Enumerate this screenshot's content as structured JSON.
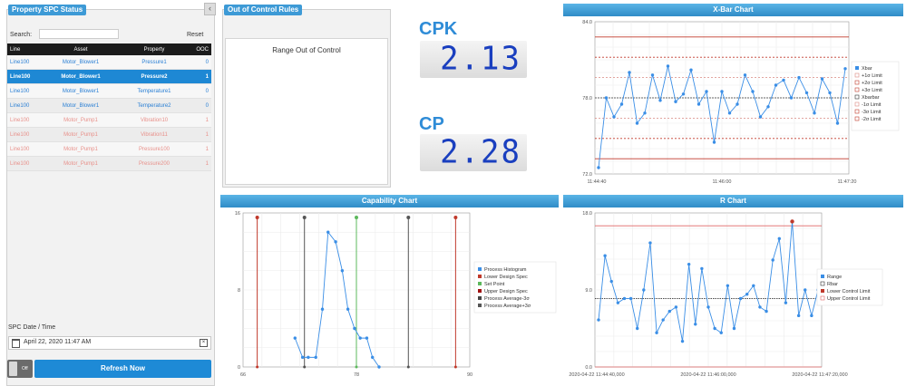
{
  "status_panel": {
    "title": "Property SPC Status",
    "search_label": "Search:",
    "search_value": "",
    "reset_label": "Reset",
    "columns": [
      "Line",
      "Asset",
      "Property",
      "OOC"
    ],
    "rows": [
      {
        "line": "Line100",
        "asset": "Motor_Blower1",
        "property": "Pressure1",
        "ooc": "0",
        "state": "normal"
      },
      {
        "line": "Line100",
        "asset": "Motor_Blower1",
        "property": "Pressure2",
        "ooc": "1",
        "state": "selected"
      },
      {
        "line": "Line100",
        "asset": "Motor_Blower1",
        "property": "Temperature1",
        "ooc": "0",
        "state": "normal"
      },
      {
        "line": "Line100",
        "asset": "Motor_Blower1",
        "property": "Temperature2",
        "ooc": "0",
        "state": "normal"
      },
      {
        "line": "Line100",
        "asset": "Motor_Pump1",
        "property": "Vibration10",
        "ooc": "1",
        "state": "alert"
      },
      {
        "line": "Line100",
        "asset": "Motor_Pump1",
        "property": "Vibration11",
        "ooc": "1",
        "state": "alert"
      },
      {
        "line": "Line100",
        "asset": "Motor_Pump1",
        "property": "Pressure100",
        "ooc": "1",
        "state": "alert"
      },
      {
        "line": "Line100",
        "asset": "Motor_Pump1",
        "property": "Pressure200",
        "ooc": "1",
        "state": "alert"
      }
    ],
    "date_label": "SPC Date / Time",
    "date_value": "April 22, 2020 11:47 AM",
    "toggle_label": "Off",
    "refresh_label": "Refresh Now"
  },
  "ooc_rules": {
    "title": "Out of Control Rules",
    "items": [
      "Range Out of Control"
    ]
  },
  "kpis": {
    "cpk_label": "CPK",
    "cpk_value": "2.13",
    "cp_label": "CP",
    "cp_value": "2.28"
  },
  "colors": {
    "accent": "#3d9ad6",
    "series": "#3a8ee6",
    "limit_red": "#c0392b",
    "center_dark": "#333333",
    "alert_row": "#e8908a",
    "selected_row": "#1e88d4"
  },
  "chart_data": [
    {
      "id": "xbar",
      "type": "line",
      "title": "X-Bar Chart",
      "xlabel": "",
      "ylabel": "",
      "x_ticks": [
        "11:44:40",
        "11:46:00",
        "11:47:20"
      ],
      "y_ticks": [
        "72.0",
        "78.0",
        "84.0"
      ],
      "ylim": [
        72,
        84
      ],
      "values": [
        72.5,
        78.0,
        76.5,
        77.5,
        80.0,
        76.0,
        76.8,
        79.8,
        77.8,
        80.5,
        77.7,
        78.3,
        80.2,
        77.5,
        78.5,
        74.5,
        78.5,
        76.8,
        77.5,
        79.8,
        78.5,
        76.5,
        77.3,
        79.0,
        79.4,
        78.0,
        79.6,
        78.4,
        76.8,
        79.5,
        78.4,
        76.0,
        80.3
      ],
      "lines": {
        "xbar": 78.0,
        "plus1": 79.6,
        "plus2": 81.2,
        "plus3": 82.8,
        "minus1": 76.4,
        "minus2": 74.8,
        "minus3": 73.2
      },
      "legend": [
        "Xbar",
        "+1σ Limit",
        "+2σ Limit",
        "+3σ Limit",
        "Xbarbar",
        "-1σ Limit",
        "-3σ Limit",
        "-2σ Limit"
      ]
    },
    {
      "id": "capability",
      "type": "line",
      "title": "Capability Chart",
      "xlabel": "",
      "ylabel": "",
      "x_ticks": [
        "66",
        "78",
        "90"
      ],
      "y_ticks": [
        "0",
        "8",
        "16"
      ],
      "xlim": [
        66,
        90
      ],
      "ylim": [
        0,
        16
      ],
      "x": [
        71.5,
        72.3,
        72.9,
        73.7,
        74.4,
        75.0,
        75.8,
        76.5,
        77.1,
        77.8,
        78.4,
        79.1,
        79.7,
        80.4
      ],
      "values": [
        3,
        1,
        1,
        1,
        6,
        14,
        13,
        10,
        6,
        4,
        3,
        3,
        1,
        0
      ],
      "markers": {
        "lower_design": 67.5,
        "process_minus3": 72.5,
        "set_point": 78.0,
        "process_plus3": 83.5,
        "upper_design": 88.5
      },
      "legend": [
        "Process Histogram",
        "Lower Design Spec",
        "Set Point",
        "Upper Design Spec",
        "Process Average-3σ",
        "Process Average+3σ"
      ]
    },
    {
      "id": "r",
      "type": "line",
      "title": "R Chart",
      "xlabel": "",
      "ylabel": "",
      "x_ticks": [
        "2020-04-22 11:44:40,000",
        "2020-04-22 11:46:00,000",
        "2020-04-22 11:47:20,000"
      ],
      "y_ticks": [
        "0.0",
        "9.0",
        "18.0"
      ],
      "ylim": [
        0,
        18
      ],
      "values": [
        5.5,
        13.0,
        10.0,
        7.5,
        8.0,
        8.0,
        4.5,
        9.0,
        14.5,
        4.0,
        5.5,
        6.5,
        7.0,
        3.0,
        12.0,
        5.0,
        11.5,
        7.0,
        4.5,
        4.0,
        9.5,
        4.5,
        8.0,
        8.5,
        9.5,
        7.0,
        6.5,
        12.5,
        15.0,
        7.5,
        17.0,
        6.0,
        9.0,
        6.0,
        9.0
      ],
      "lines": {
        "rbar": 8.0,
        "lcl": 0.0,
        "ucl": 16.5
      },
      "legend": [
        "Range",
        "Rbar",
        "Lower Control Limit",
        "Upper Control Limit"
      ]
    }
  ]
}
